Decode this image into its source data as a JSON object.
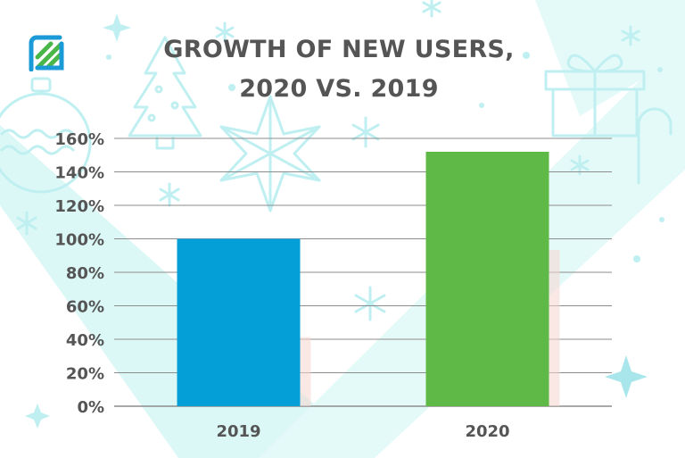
{
  "colors": {
    "background_shape": "#dbf8f6",
    "decoration": "#bfeff0",
    "gridline": "#8c8c8c",
    "text": "#555555",
    "logo_green": "#49b649",
    "logo_blue": "#1a9ad6"
  },
  "logo": {
    "icon": "brand-logo-icon"
  },
  "chart_data": {
    "type": "bar",
    "title_lines": [
      "GROWTH OF NEW USERS,",
      "2020 VS. 2019"
    ],
    "categories": [
      "2019",
      "2020"
    ],
    "values": [
      100,
      152
    ],
    "bar_colors": [
      "#049fd6",
      "#5eb946"
    ],
    "ylim": [
      0,
      160
    ],
    "yticks": [
      0,
      20,
      40,
      60,
      80,
      100,
      120,
      140,
      160
    ],
    "ytick_labels": [
      "0%",
      "20%",
      "40%",
      "60%",
      "80%",
      "100%",
      "120%",
      "140%",
      "160%"
    ],
    "grid": true,
    "legend": "none"
  }
}
